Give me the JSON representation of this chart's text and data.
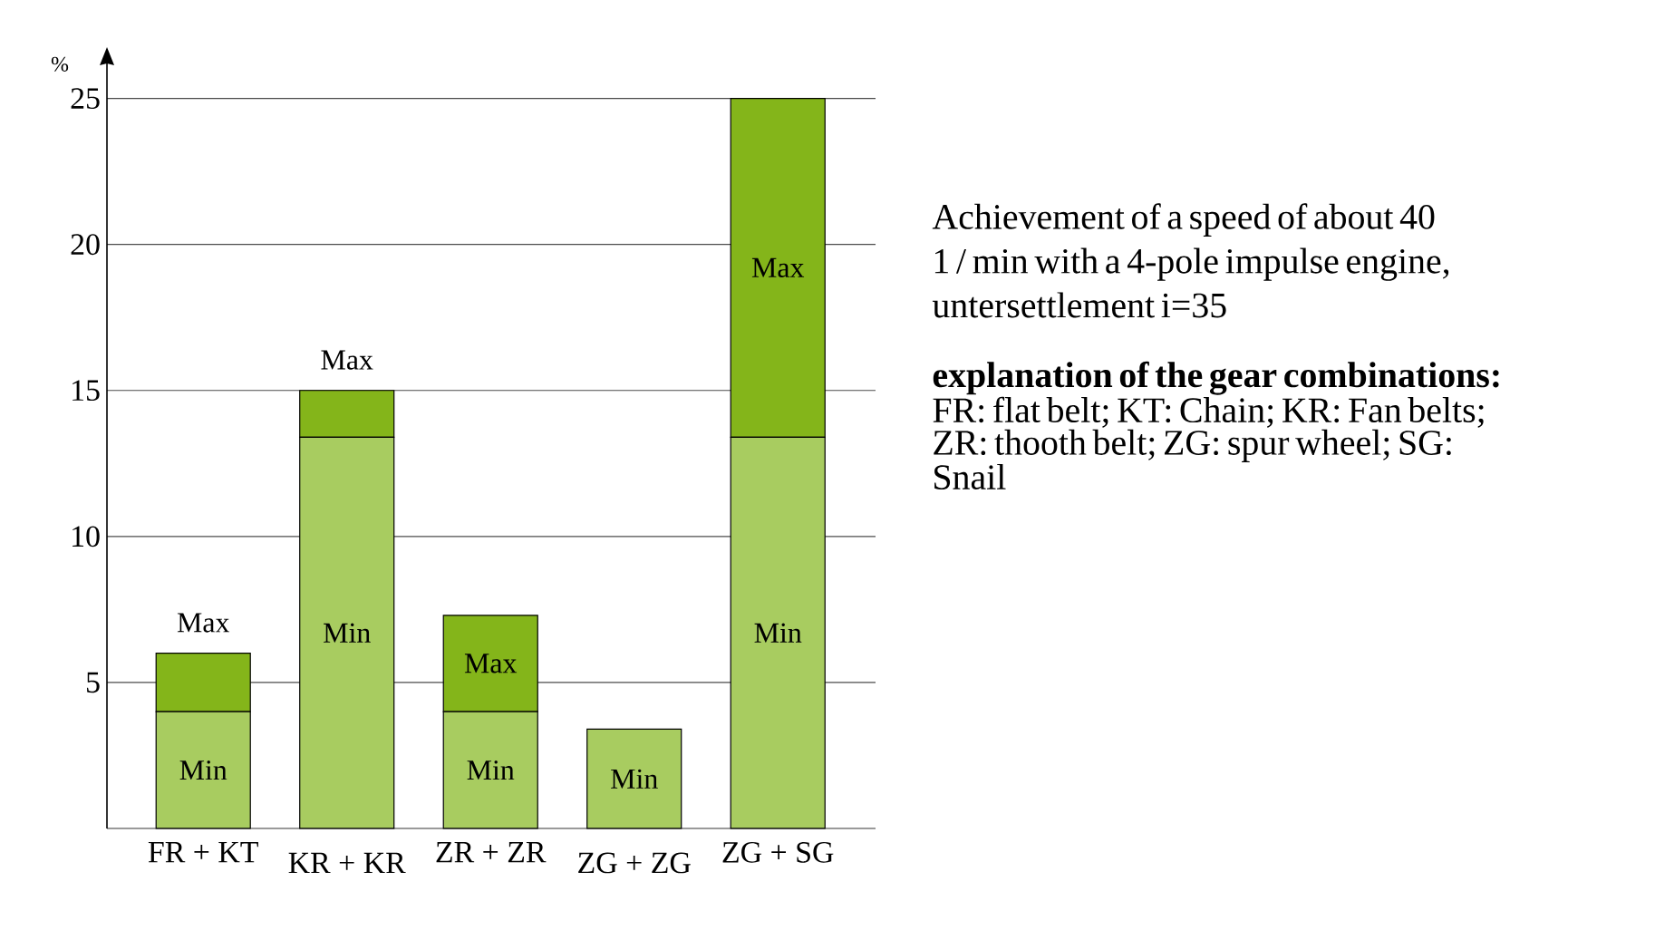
{
  "chart_data": {
    "type": "bar",
    "stacked": true,
    "ylabel": "%",
    "categories": [
      "FR + KT",
      "KR + KR",
      "ZR + ZR",
      "ZG + ZG",
      "ZG + SG"
    ],
    "series": [
      {
        "name": "Min",
        "color": "#a8cc60",
        "values": [
          4,
          13.4,
          4,
          3.4,
          13.4
        ]
      },
      {
        "name": "Max",
        "color": "#84b51a",
        "values": [
          2,
          1.6,
          3.3,
          null,
          11.6
        ]
      }
    ],
    "ylim": [
      0,
      26.2
    ],
    "yticks": [
      5,
      10,
      15,
      20,
      25
    ],
    "grid": "y",
    "annotations": [
      "Achievement of a speed of about 40 1 / min with a 4-pole impulse engine, untersettlement i=35",
      "explanation of the gear combinations:",
      "FR: flat belt; KT: Chain; KR: Fan belts; ZR: thooth belt; ZG: spur wheel; SG: Snail"
    ]
  }
}
